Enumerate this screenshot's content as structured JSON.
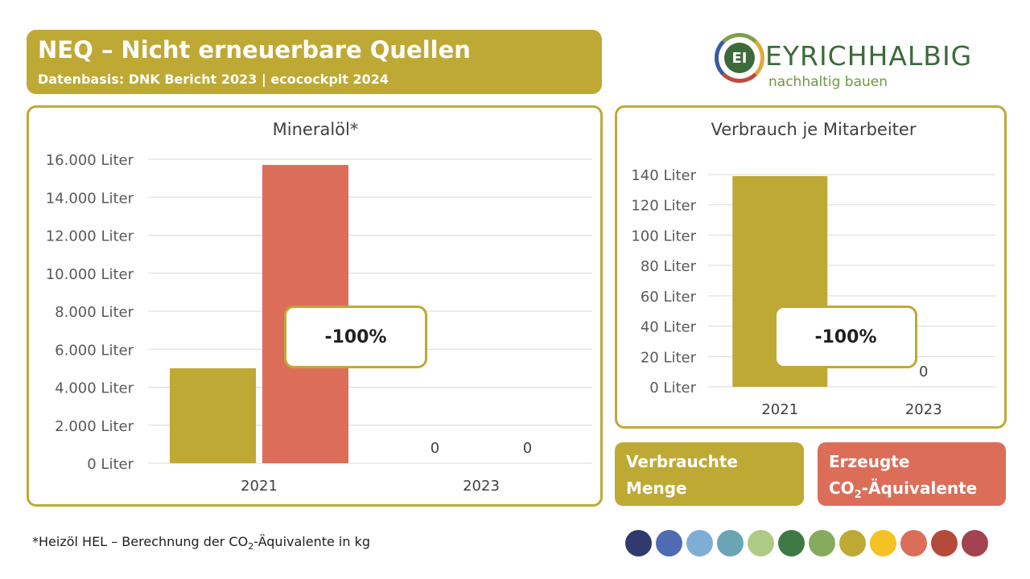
{
  "header": {
    "title": "NEQ – Nicht erneuerbare Quellen",
    "subtitle": "Datenbasis: DNK Bericht 2023 | ecocockpit 2024"
  },
  "logo": {
    "mark": "EI",
    "name": "EYRICHHALBIG",
    "tagline": "nachhaltig bauen"
  },
  "colors": {
    "accent_olive": "#bfa935",
    "accent_coral": "#dc6e59"
  },
  "legend": {
    "used_line1": "Verbrauchte",
    "used_line2": "Menge",
    "co2_line1": "Erzeugte",
    "co2_prefix": "CO",
    "co2_sub": "2",
    "co2_suffix": "-Äquivalente"
  },
  "footnote": {
    "prefix": "*Heizöl HEL – Berechnung der CO",
    "sub": "2",
    "suffix": "-Äquivalente in kg"
  },
  "palette": [
    "#2f3a6e",
    "#4f6cb3",
    "#7eaed6",
    "#6aa5b6",
    "#aecb86",
    "#3f7a44",
    "#86ab5c",
    "#bfa935",
    "#f5c224",
    "#dc6e59",
    "#b64a3a",
    "#a34250"
  ],
  "chart_data": [
    {
      "type": "bar",
      "title": "Mineralöl*",
      "categories": [
        "2021",
        "2023"
      ],
      "series": [
        {
          "name": "Verbrauchte Menge",
          "color": "#bfa935",
          "values": [
            5000,
            0
          ]
        },
        {
          "name": "Erzeugte CO₂-Äquivalente",
          "color": "#dc6e59",
          "values": [
            15700,
            0
          ]
        }
      ],
      "ylim": [
        0,
        16000
      ],
      "yticks": [
        "0 Liter",
        "2.000 Liter",
        "4.000 Liter",
        "6.000 Liter",
        "8.000 Liter",
        "10.000 Liter",
        "12.000 Liter",
        "14.000 Liter",
        "16.000 Liter"
      ],
      "data_labels": [
        "0",
        "0"
      ],
      "annotation": "-100%",
      "grid": true
    },
    {
      "type": "bar",
      "title": "Verbrauch je Mitarbeiter",
      "categories": [
        "2021",
        "2023"
      ],
      "series": [
        {
          "color": "#bfa935",
          "values": [
            139,
            0
          ]
        }
      ],
      "ylim": [
        0,
        140
      ],
      "yticks": [
        "0 Liter",
        "20 Liter",
        "40 Liter",
        "60 Liter",
        "80 Liter",
        "100 Liter",
        "120 Liter",
        "140 Liter"
      ],
      "data_labels": [
        "0"
      ],
      "annotation": "-100%",
      "grid": true
    }
  ]
}
